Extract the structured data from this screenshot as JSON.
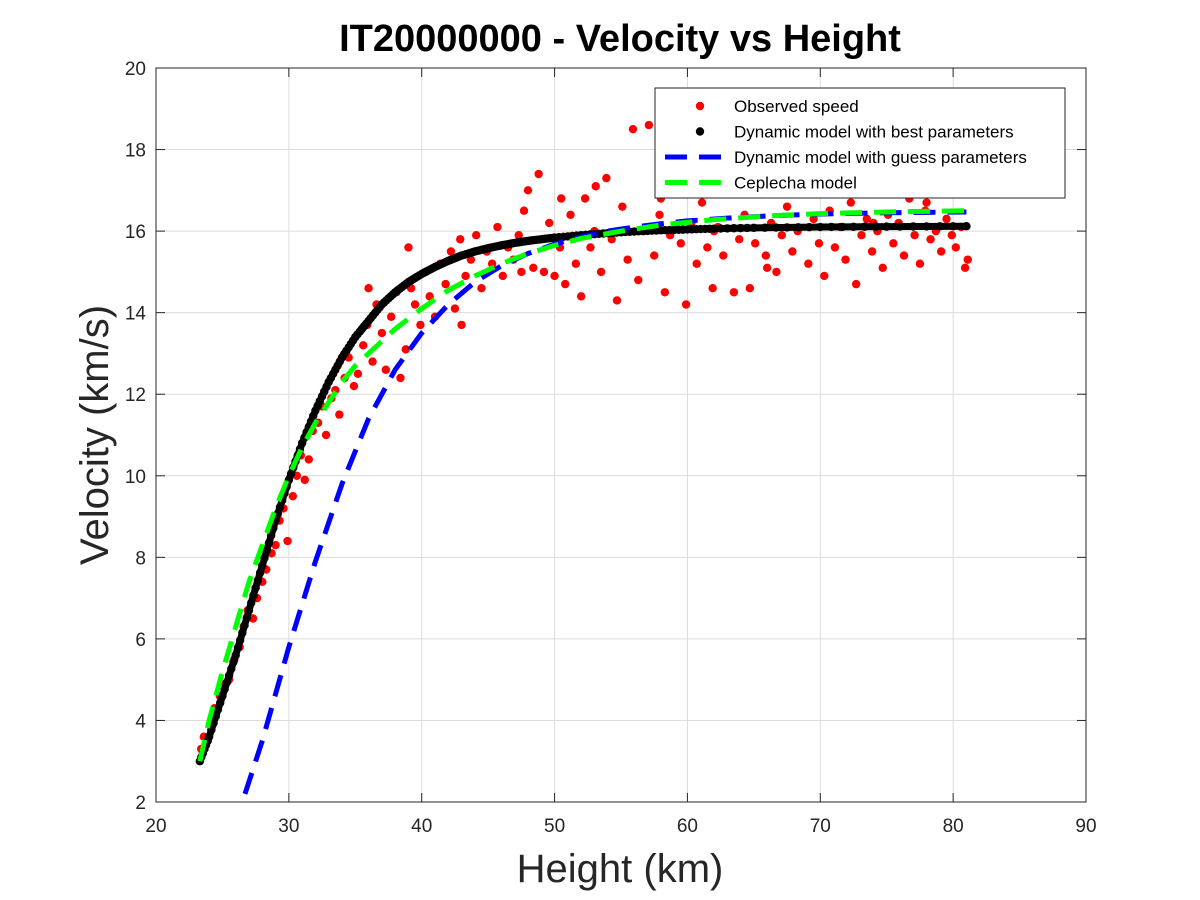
{
  "chart_data": {
    "type": "scatter",
    "title": "IT20000000 - Velocity vs Height",
    "xlabel": "Height (km)",
    "ylabel": "Velocity (km/s)",
    "xlim": [
      20,
      90
    ],
    "ylim": [
      2,
      20
    ],
    "xticks": [
      20,
      30,
      40,
      50,
      60,
      70,
      80,
      90
    ],
    "yticks": [
      2,
      4,
      6,
      8,
      10,
      12,
      14,
      16,
      18,
      20
    ],
    "grid": true,
    "legend_position": "top-right",
    "series": [
      {
        "name": "Observed speed",
        "kind": "scatter",
        "color": "#ff0000",
        "points": [
          [
            23.4,
            3.3
          ],
          [
            23.6,
            3.6
          ],
          [
            23.9,
            3.5
          ],
          [
            24.2,
            3.9
          ],
          [
            24.4,
            4.3
          ],
          [
            24.8,
            4.6
          ],
          [
            25.2,
            4.9
          ],
          [
            25.5,
            5.0
          ],
          [
            25.9,
            5.5
          ],
          [
            26.3,
            5.8
          ],
          [
            26.6,
            6.3
          ],
          [
            26.9,
            6.7
          ],
          [
            27.3,
            6.5
          ],
          [
            27.6,
            7.0
          ],
          [
            28.0,
            7.4
          ],
          [
            28.3,
            7.7
          ],
          [
            28.7,
            8.1
          ],
          [
            29.0,
            8.3
          ],
          [
            29.3,
            8.9
          ],
          [
            29.6,
            9.2
          ],
          [
            29.9,
            8.4
          ],
          [
            30.3,
            9.5
          ],
          [
            30.6,
            10.0
          ],
          [
            30.9,
            10.5
          ],
          [
            31.2,
            9.9
          ],
          [
            31.5,
            10.4
          ],
          [
            31.8,
            11.1
          ],
          [
            32.2,
            11.3
          ],
          [
            32.5,
            11.7
          ],
          [
            32.8,
            11.0
          ],
          [
            33.2,
            11.9
          ],
          [
            33.5,
            12.1
          ],
          [
            33.8,
            11.5
          ],
          [
            34.2,
            12.4
          ],
          [
            34.5,
            12.9
          ],
          [
            34.9,
            12.2
          ],
          [
            35.2,
            12.5
          ],
          [
            35.6,
            13.2
          ],
          [
            35.9,
            13.7
          ],
          [
            36.3,
            12.8
          ],
          [
            36.6,
            14.2
          ],
          [
            37.0,
            13.5
          ],
          [
            37.3,
            12.6
          ],
          [
            37.7,
            13.9
          ],
          [
            38.1,
            14.5
          ],
          [
            38.4,
            12.4
          ],
          [
            38.8,
            13.1
          ],
          [
            39.2,
            14.6
          ],
          [
            39.5,
            14.2
          ],
          [
            39.9,
            13.7
          ],
          [
            40.3,
            15.0
          ],
          [
            40.6,
            14.4
          ],
          [
            41.0,
            13.9
          ],
          [
            41.4,
            15.2
          ],
          [
            41.8,
            14.7
          ],
          [
            42.2,
            15.5
          ],
          [
            42.5,
            14.1
          ],
          [
            42.9,
            15.8
          ],
          [
            43.3,
            14.9
          ],
          [
            43.7,
            15.3
          ],
          [
            44.1,
            15.9
          ],
          [
            44.5,
            14.6
          ],
          [
            44.9,
            15.5
          ],
          [
            45.3,
            15.2
          ],
          [
            45.7,
            16.1
          ],
          [
            46.1,
            14.9
          ],
          [
            46.5,
            15.6
          ],
          [
            46.9,
            15.3
          ],
          [
            47.3,
            15.9
          ],
          [
            47.7,
            16.5
          ],
          [
            48.0,
            17.0
          ],
          [
            48.4,
            15.1
          ],
          [
            48.8,
            17.4
          ],
          [
            49.2,
            15.0
          ],
          [
            49.6,
            16.2
          ],
          [
            50.0,
            14.9
          ],
          [
            50.4,
            15.6
          ],
          [
            50.8,
            14.7
          ],
          [
            51.2,
            16.4
          ],
          [
            51.6,
            15.2
          ],
          [
            52.0,
            14.4
          ],
          [
            52.3,
            16.8
          ],
          [
            52.7,
            15.6
          ],
          [
            53.1,
            17.1
          ],
          [
            53.5,
            15.0
          ],
          [
            53.9,
            17.3
          ],
          [
            54.3,
            15.8
          ],
          [
            54.7,
            14.3
          ],
          [
            55.1,
            16.6
          ],
          [
            55.5,
            15.3
          ],
          [
            55.9,
            18.5
          ],
          [
            56.3,
            14.8
          ],
          [
            56.7,
            16.0
          ],
          [
            57.1,
            18.6
          ],
          [
            57.5,
            15.4
          ],
          [
            57.9,
            16.4
          ],
          [
            58.3,
            14.5
          ],
          [
            58.7,
            15.9
          ],
          [
            59.1,
            17.0
          ],
          [
            59.5,
            15.7
          ],
          [
            59.9,
            14.2
          ],
          [
            60.3,
            16.2
          ],
          [
            60.7,
            15.2
          ],
          [
            61.1,
            16.7
          ],
          [
            61.5,
            15.6
          ],
          [
            61.9,
            14.6
          ],
          [
            62.3,
            16.1
          ],
          [
            62.7,
            15.4
          ],
          [
            63.1,
            17.3
          ],
          [
            63.5,
            14.5
          ],
          [
            63.9,
            15.8
          ],
          [
            64.3,
            16.4
          ],
          [
            64.7,
            14.6
          ],
          [
            65.1,
            15.7
          ],
          [
            65.5,
            16.9
          ],
          [
            65.9,
            15.4
          ],
          [
            66.3,
            16.2
          ],
          [
            66.7,
            15.0
          ],
          [
            67.1,
            15.9
          ],
          [
            67.5,
            16.6
          ],
          [
            67.9,
            15.5
          ],
          [
            68.3,
            16.0
          ],
          [
            68.7,
            17.4
          ],
          [
            69.1,
            15.2
          ],
          [
            69.5,
            16.3
          ],
          [
            69.9,
            15.7
          ],
          [
            70.3,
            14.9
          ],
          [
            70.7,
            16.5
          ],
          [
            71.1,
            15.6
          ],
          [
            71.5,
            16.1
          ],
          [
            71.9,
            15.3
          ],
          [
            72.3,
            16.7
          ],
          [
            72.7,
            14.7
          ],
          [
            73.1,
            15.9
          ],
          [
            73.5,
            16.3
          ],
          [
            73.9,
            15.5
          ],
          [
            74.3,
            16.0
          ],
          [
            74.7,
            15.1
          ],
          [
            75.1,
            16.4
          ],
          [
            75.5,
            15.7
          ],
          [
            75.9,
            16.2
          ],
          [
            76.3,
            15.4
          ],
          [
            76.7,
            16.8
          ],
          [
            77.1,
            15.9
          ],
          [
            77.5,
            15.2
          ],
          [
            77.9,
            16.5
          ],
          [
            78.3,
            15.8
          ],
          [
            78.7,
            16.0
          ],
          [
            79.1,
            15.5
          ],
          [
            79.5,
            16.3
          ],
          [
            79.9,
            15.9
          ],
          [
            80.2,
            15.6
          ],
          [
            80.6,
            16.1
          ],
          [
            80.9,
            15.1
          ],
          [
            81.1,
            15.3
          ],
          [
            36.0,
            14.6
          ],
          [
            39.0,
            15.6
          ],
          [
            43.0,
            13.7
          ],
          [
            47.5,
            15.0
          ],
          [
            50.5,
            16.8
          ],
          [
            53.0,
            16.0
          ],
          [
            58.0,
            16.8
          ],
          [
            62.0,
            16.0
          ],
          [
            66.0,
            15.1
          ],
          [
            70.0,
            16.9
          ],
          [
            74.0,
            16.2
          ],
          [
            78.0,
            16.7
          ]
        ]
      },
      {
        "name": "Dynamic model with best parameters",
        "kind": "line",
        "style": "solid-dots",
        "color": "#000000",
        "x": [
          23.3,
          24.0,
          25.0,
          26.0,
          27.0,
          28.0,
          29.0,
          30.0,
          31.0,
          32.0,
          33.0,
          34.0,
          35.0,
          36.0,
          37.0,
          38.0,
          39.0,
          40.0,
          41.0,
          42.0,
          43.0,
          44.0,
          45.0,
          46.0,
          47.0,
          48.0,
          49.0,
          50.0,
          52.0,
          54.0,
          56.0,
          58.0,
          60.0,
          62.0,
          65.0,
          70.0,
          75.0,
          81.0
        ],
        "y": [
          3.0,
          3.6,
          4.6,
          5.6,
          6.7,
          7.8,
          8.9,
          9.9,
          10.8,
          11.6,
          12.3,
          12.9,
          13.4,
          13.8,
          14.2,
          14.5,
          14.75,
          14.95,
          15.12,
          15.27,
          15.4,
          15.5,
          15.58,
          15.65,
          15.71,
          15.76,
          15.8,
          15.84,
          15.9,
          15.95,
          15.99,
          16.02,
          16.04,
          16.06,
          16.08,
          16.1,
          16.11,
          16.12
        ]
      },
      {
        "name": "Dynamic model with guess parameters",
        "kind": "line",
        "style": "dashed",
        "color": "#0000ff",
        "x": [
          26.7,
          28.0,
          30.0,
          32.0,
          34.0,
          36.0,
          38.0,
          40.0,
          42.0,
          44.0,
          46.0,
          48.0,
          50.0,
          52.0,
          54.0,
          56.0,
          58.0,
          60.0,
          63.0,
          66.0,
          70.0,
          75.0,
          81.0
        ],
        "y": [
          2.2,
          3.5,
          5.8,
          7.9,
          9.8,
          11.4,
          12.6,
          13.5,
          14.2,
          14.75,
          15.15,
          15.45,
          15.68,
          15.86,
          16.0,
          16.1,
          16.18,
          16.25,
          16.32,
          16.37,
          16.42,
          16.45,
          16.47
        ]
      },
      {
        "name": "Ceplecha model",
        "kind": "line",
        "style": "dashed",
        "color": "#00ff00",
        "x": [
          23.3,
          24.0,
          25.0,
          26.0,
          27.0,
          28.0,
          29.0,
          30.0,
          31.0,
          32.0,
          33.0,
          34.0,
          35.0,
          36.0,
          37.0,
          38.0,
          39.0,
          40.0,
          42.0,
          44.0,
          46.0,
          48.0,
          50.0,
          52.0,
          55.0,
          58.0,
          62.0,
          66.0,
          70.0,
          75.0,
          81.0
        ],
        "y": [
          3.0,
          4.0,
          5.2,
          6.3,
          7.4,
          8.3,
          9.2,
          10.0,
          10.7,
          11.3,
          11.8,
          12.3,
          12.7,
          13.0,
          13.3,
          13.6,
          13.85,
          14.1,
          14.55,
          14.9,
          15.2,
          15.45,
          15.65,
          15.82,
          16.0,
          16.15,
          16.28,
          16.37,
          16.43,
          16.47,
          16.5
        ]
      }
    ]
  }
}
